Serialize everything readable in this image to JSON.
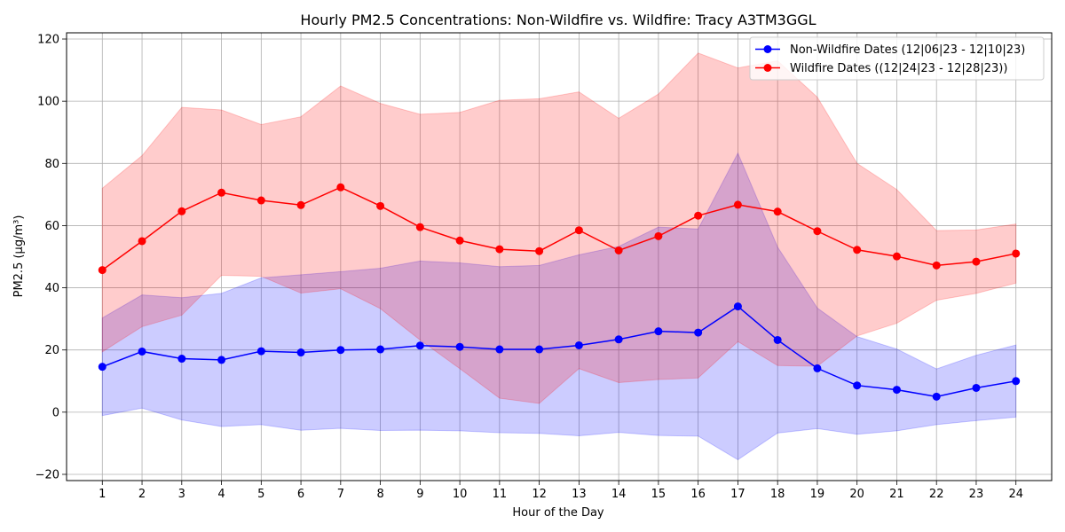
{
  "chart_data": {
    "type": "line",
    "title": "Hourly PM2.5 Concentrations: Non-Wildfire vs. Wildfire: Tracy A3TM3GGL",
    "xlabel": "Hour of the Day",
    "ylabel": "PM2.5 (µg/m³)",
    "x": [
      1,
      2,
      3,
      4,
      5,
      6,
      7,
      8,
      9,
      10,
      11,
      12,
      13,
      14,
      15,
      16,
      17,
      18,
      19,
      20,
      21,
      22,
      23,
      24
    ],
    "x_ticks": [
      "1",
      "2",
      "3",
      "4",
      "5",
      "6",
      "7",
      "8",
      "9",
      "10",
      "11",
      "12",
      "13",
      "14",
      "15",
      "16",
      "17",
      "18",
      "19",
      "20",
      "21",
      "22",
      "23",
      "24"
    ],
    "xlim": [
      0.1,
      24.9
    ],
    "ylim": [
      -22,
      122
    ],
    "y_ticks": [
      "−20",
      "0",
      "20",
      "40",
      "60",
      "80",
      "100",
      "120"
    ],
    "y_tick_values": [
      -20,
      0,
      20,
      40,
      60,
      80,
      100,
      120
    ],
    "grid": true,
    "legend_position": "top-right",
    "series": [
      {
        "name": "Non-Wildfire Dates (12|06|23 - 12|10|23)",
        "color": "#0000ff",
        "band_color": "#0000ff",
        "values": [
          14.6,
          19.5,
          17.2,
          16.8,
          19.6,
          19.2,
          20.0,
          20.2,
          21.4,
          21.0,
          20.2,
          20.2,
          21.5,
          23.4,
          26.0,
          25.6,
          34.0,
          23.2,
          14.1,
          8.6,
          7.2,
          5.0,
          7.8,
          10.0
        ],
        "upper": [
          30.3,
          37.7,
          36.8,
          38.2,
          43.2,
          44.2,
          45.2,
          46.3,
          48.6,
          48.0,
          46.8,
          47.2,
          50.6,
          53.3,
          59.5,
          58.9,
          83.3,
          53.1,
          33.5,
          24.3,
          20.3,
          13.9,
          18.3,
          21.6
        ],
        "lower": [
          -1.1,
          1.3,
          -2.5,
          -4.6,
          -4.0,
          -5.8,
          -5.2,
          -5.9,
          -5.8,
          -6.0,
          -6.6,
          -6.8,
          -7.6,
          -6.5,
          -7.5,
          -7.7,
          -15.3,
          -6.7,
          -5.3,
          -7.1,
          -6.0,
          -4.0,
          -2.7,
          -1.6
        ]
      },
      {
        "name": "Wildfire Dates ((12|24|23 - 12|28|23))",
        "color": "#ff0000",
        "band_color": "#ff0000",
        "values": [
          45.7,
          55.0,
          64.6,
          70.6,
          68.1,
          66.6,
          72.3,
          66.3,
          59.5,
          55.2,
          52.4,
          51.8,
          58.5,
          52.0,
          56.6,
          63.2,
          66.7,
          64.5,
          58.2,
          52.2,
          50.1,
          47.2,
          48.4,
          51.0
        ],
        "upper": [
          72.0,
          82.5,
          98.0,
          97.2,
          92.5,
          95.0,
          104.9,
          99.3,
          95.8,
          96.4,
          100.3,
          100.8,
          103.0,
          94.5,
          102.3,
          115.5,
          110.7,
          113.0,
          101.3,
          80.0,
          71.6,
          58.4,
          58.6,
          60.5
        ],
        "lower": [
          19.4,
          27.5,
          31.2,
          44.0,
          43.7,
          38.3,
          39.7,
          33.3,
          23.2,
          14.0,
          4.5,
          2.8,
          14.0,
          9.5,
          10.5,
          11.0,
          22.7,
          15.0,
          14.8,
          24.5,
          28.6,
          36.0,
          38.2,
          41.5
        ]
      }
    ]
  }
}
